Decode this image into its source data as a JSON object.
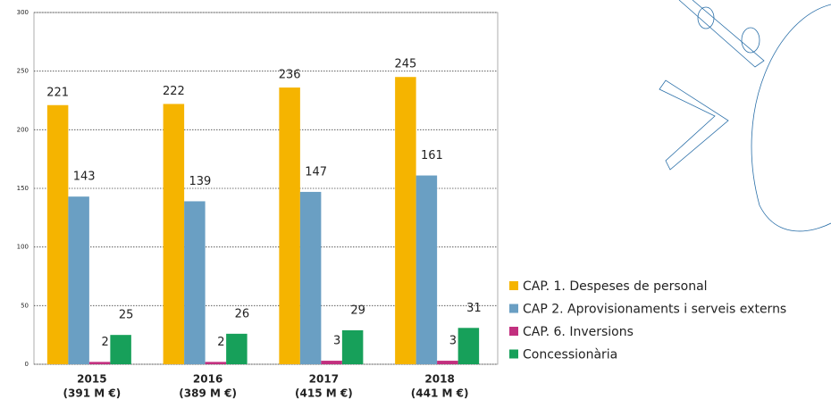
{
  "chart_data": {
    "type": "bar",
    "categories": [
      "2015",
      "2016",
      "2017",
      "2018"
    ],
    "category_totals": [
      "(391 M €)",
      "(389 M €)",
      "(415 M €)",
      "(441 M €)"
    ],
    "series": [
      {
        "name": "CAP. 1. Despeses de personal",
        "color": "#f5b400",
        "values": [
          221,
          222,
          236,
          245
        ]
      },
      {
        "name": "CAP 2. Aprovisionaments i serveis externs",
        "color": "#6a9fc3",
        "values": [
          143,
          139,
          147,
          161
        ]
      },
      {
        "name": "CAP. 6. Inversions",
        "color": "#c2307f",
        "values": [
          2,
          2,
          3,
          3
        ]
      },
      {
        "name": "Concessionària",
        "color": "#17a05a",
        "values": [
          25,
          26,
          29,
          31
        ]
      }
    ],
    "ylim": [
      0,
      300
    ],
    "yticks": [
      0,
      50,
      100,
      150,
      200,
      250,
      300
    ],
    "grid": true
  }
}
